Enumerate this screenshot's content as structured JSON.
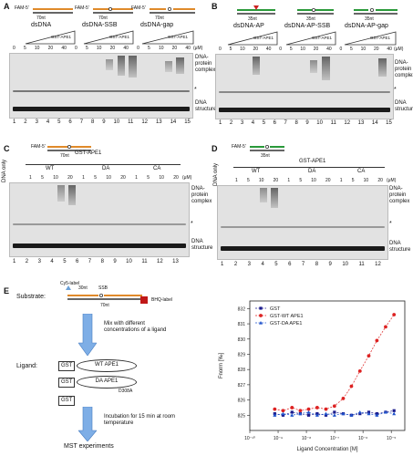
{
  "panelA": {
    "label": "A",
    "substrates": [
      "dsDNA",
      "dsDNA-SSB",
      "dsDNA-gap"
    ],
    "fam": [
      "FAM-5'",
      "FAM-5'",
      "FAM-5'"
    ],
    "lengths": [
      "70nt",
      "70nt",
      "70nt"
    ],
    "enzyme": "GST-APE1",
    "unit": "(μM)",
    "conc": [
      "0",
      "5",
      "10",
      "20",
      "40",
      "0",
      "5",
      "10",
      "20",
      "40",
      "0",
      "5",
      "10",
      "20",
      "40"
    ],
    "lanes": [
      "1",
      "2",
      "3",
      "4",
      "5",
      "6",
      "7",
      "8",
      "9",
      "10",
      "11",
      "12",
      "13",
      "14",
      "15"
    ],
    "complex": "DNA-protein complex",
    "star": "*",
    "structures": "DNA structures"
  },
  "panelB": {
    "label": "B",
    "substrates": [
      "dsDNA-AP",
      "dsDNA-AP-SSB",
      "dsDNA-AP-gap"
    ],
    "lengths": [
      "35nt",
      "35nt",
      "35nt"
    ],
    "enzyme": "GST-APE1",
    "unit": "(μM)",
    "conc": [
      "0",
      "5",
      "10",
      "20",
      "40",
      "0",
      "5",
      "10",
      "20",
      "40",
      "0",
      "5",
      "10",
      "20",
      "40"
    ],
    "lanes": [
      "1",
      "2",
      "3",
      "4",
      "5",
      "6",
      "7",
      "8",
      "9",
      "10",
      "11",
      "12",
      "13",
      "14",
      "15"
    ],
    "complex": "DNA-protein complex",
    "star": "*",
    "structures": "DNA structures"
  },
  "panelC": {
    "label": "C",
    "dna_only": "DNA only",
    "fam": "FAM-5'",
    "length": "70nt",
    "enzyme": "GST-APE1",
    "groups": [
      "WT",
      "DA",
      "CA"
    ],
    "unit": "(μM)",
    "conc": [
      "1",
      "5",
      "10",
      "20",
      "1",
      "5",
      "10",
      "20",
      "1",
      "5",
      "10",
      "20"
    ],
    "lanes": [
      "1",
      "2",
      "3",
      "4",
      "5",
      "6",
      "7",
      "8",
      "9",
      "10",
      "11",
      "12",
      "13"
    ],
    "complex": "DNA-protein complex",
    "star": "*",
    "structure": "DNA structure"
  },
  "panelD": {
    "label": "D",
    "dna_only": "DNA only",
    "fam": "FAM-5'",
    "length": "35nt",
    "enzyme": "GST-APE1",
    "groups": [
      "WT",
      "DA",
      "CA"
    ],
    "unit": "(μM)",
    "conc": [
      "1",
      "5",
      "10",
      "20",
      "1",
      "5",
      "10",
      "20",
      "1",
      "5",
      "10",
      "20"
    ],
    "lanes": [
      "1",
      "2",
      "3",
      "4",
      "5",
      "6",
      "7",
      "8",
      "9",
      "10",
      "11",
      "12"
    ],
    "complex": "DNA-protein complex",
    "star": "*",
    "structure": "DNA structure"
  },
  "panelE": {
    "label": "E",
    "substrate_label": "Substrate:",
    "cy5": "Cy5-label",
    "sub_lengths": [
      "30nt",
      "SSB",
      "70nt"
    ],
    "bhq": "BHQ-label",
    "step1": "Mix with different concentrations of a ligand",
    "ligand_label": "Ligand:",
    "ligands": [
      {
        "tag": "GST",
        "name": "WT APE1"
      },
      {
        "tag": "GST",
        "name": "DA APE1"
      },
      {
        "tag": "GST",
        "name": ""
      }
    ],
    "mutation": "D308A",
    "step2": "Incubation for 15 min at room temperature",
    "step3": "MST experiments"
  },
  "chart_data": {
    "type": "scatter",
    "xlabel": "Ligand Concentration [M]",
    "ylabel": "Fnorm [‰]",
    "xscale": "log",
    "xlim": [
      1e-10,
      3e-05
    ],
    "ylim": [
      824,
      832.5
    ],
    "yticks": [
      825,
      826,
      827,
      828,
      829,
      830,
      831,
      832
    ],
    "xticks": [
      "10⁻¹⁰",
      "10⁻⁹",
      "10⁻⁸",
      "10⁻⁷",
      "10⁻⁶",
      "10⁻⁵"
    ],
    "legend_position": "top-left",
    "series": [
      {
        "name": "GST",
        "color": "#1a1a8c",
        "x": [
          7.6e-10,
          1.5e-09,
          3.1e-09,
          6.1e-09,
          1.2e-08,
          2.4e-08,
          4.9e-08,
          9.8e-08,
          2e-07,
          3.9e-07,
          7.8e-07,
          1.6e-06,
          3.1e-06,
          6.3e-06,
          1.25e-05
        ],
        "y": [
          825.1,
          825.0,
          825.2,
          825.1,
          825.0,
          825.1,
          825.0,
          825.2,
          825.1,
          825.0,
          825.1,
          825.2,
          825.1,
          825.2,
          825.3
        ]
      },
      {
        "name": "GST-WT APE1",
        "color": "#dd2222",
        "x": [
          7.6e-10,
          1.5e-09,
          3.1e-09,
          6.1e-09,
          1.2e-08,
          2.4e-08,
          4.9e-08,
          9.8e-08,
          2e-07,
          3.9e-07,
          7.8e-07,
          1.6e-06,
          3.1e-06,
          6.3e-06,
          1.25e-05
        ],
        "y": [
          825.4,
          825.3,
          825.5,
          825.3,
          825.4,
          825.5,
          825.4,
          825.6,
          826.1,
          826.9,
          827.9,
          828.9,
          829.9,
          830.8,
          831.6
        ]
      },
      {
        "name": "GST-DA APE1",
        "color": "#2255cc",
        "x": [
          7.6e-10,
          1.5e-09,
          3.1e-09,
          6.1e-09,
          1.2e-08,
          2.4e-08,
          4.9e-08,
          9.8e-08,
          2e-07,
          3.9e-07,
          7.8e-07,
          1.6e-06,
          3.1e-06,
          6.3e-06,
          1.25e-05
        ],
        "y": [
          825.0,
          825.1,
          825.0,
          825.1,
          825.2,
          825.0,
          825.1,
          825.0,
          825.1,
          825.0,
          825.2,
          825.1,
          825.0,
          825.2,
          825.1
        ]
      }
    ]
  }
}
